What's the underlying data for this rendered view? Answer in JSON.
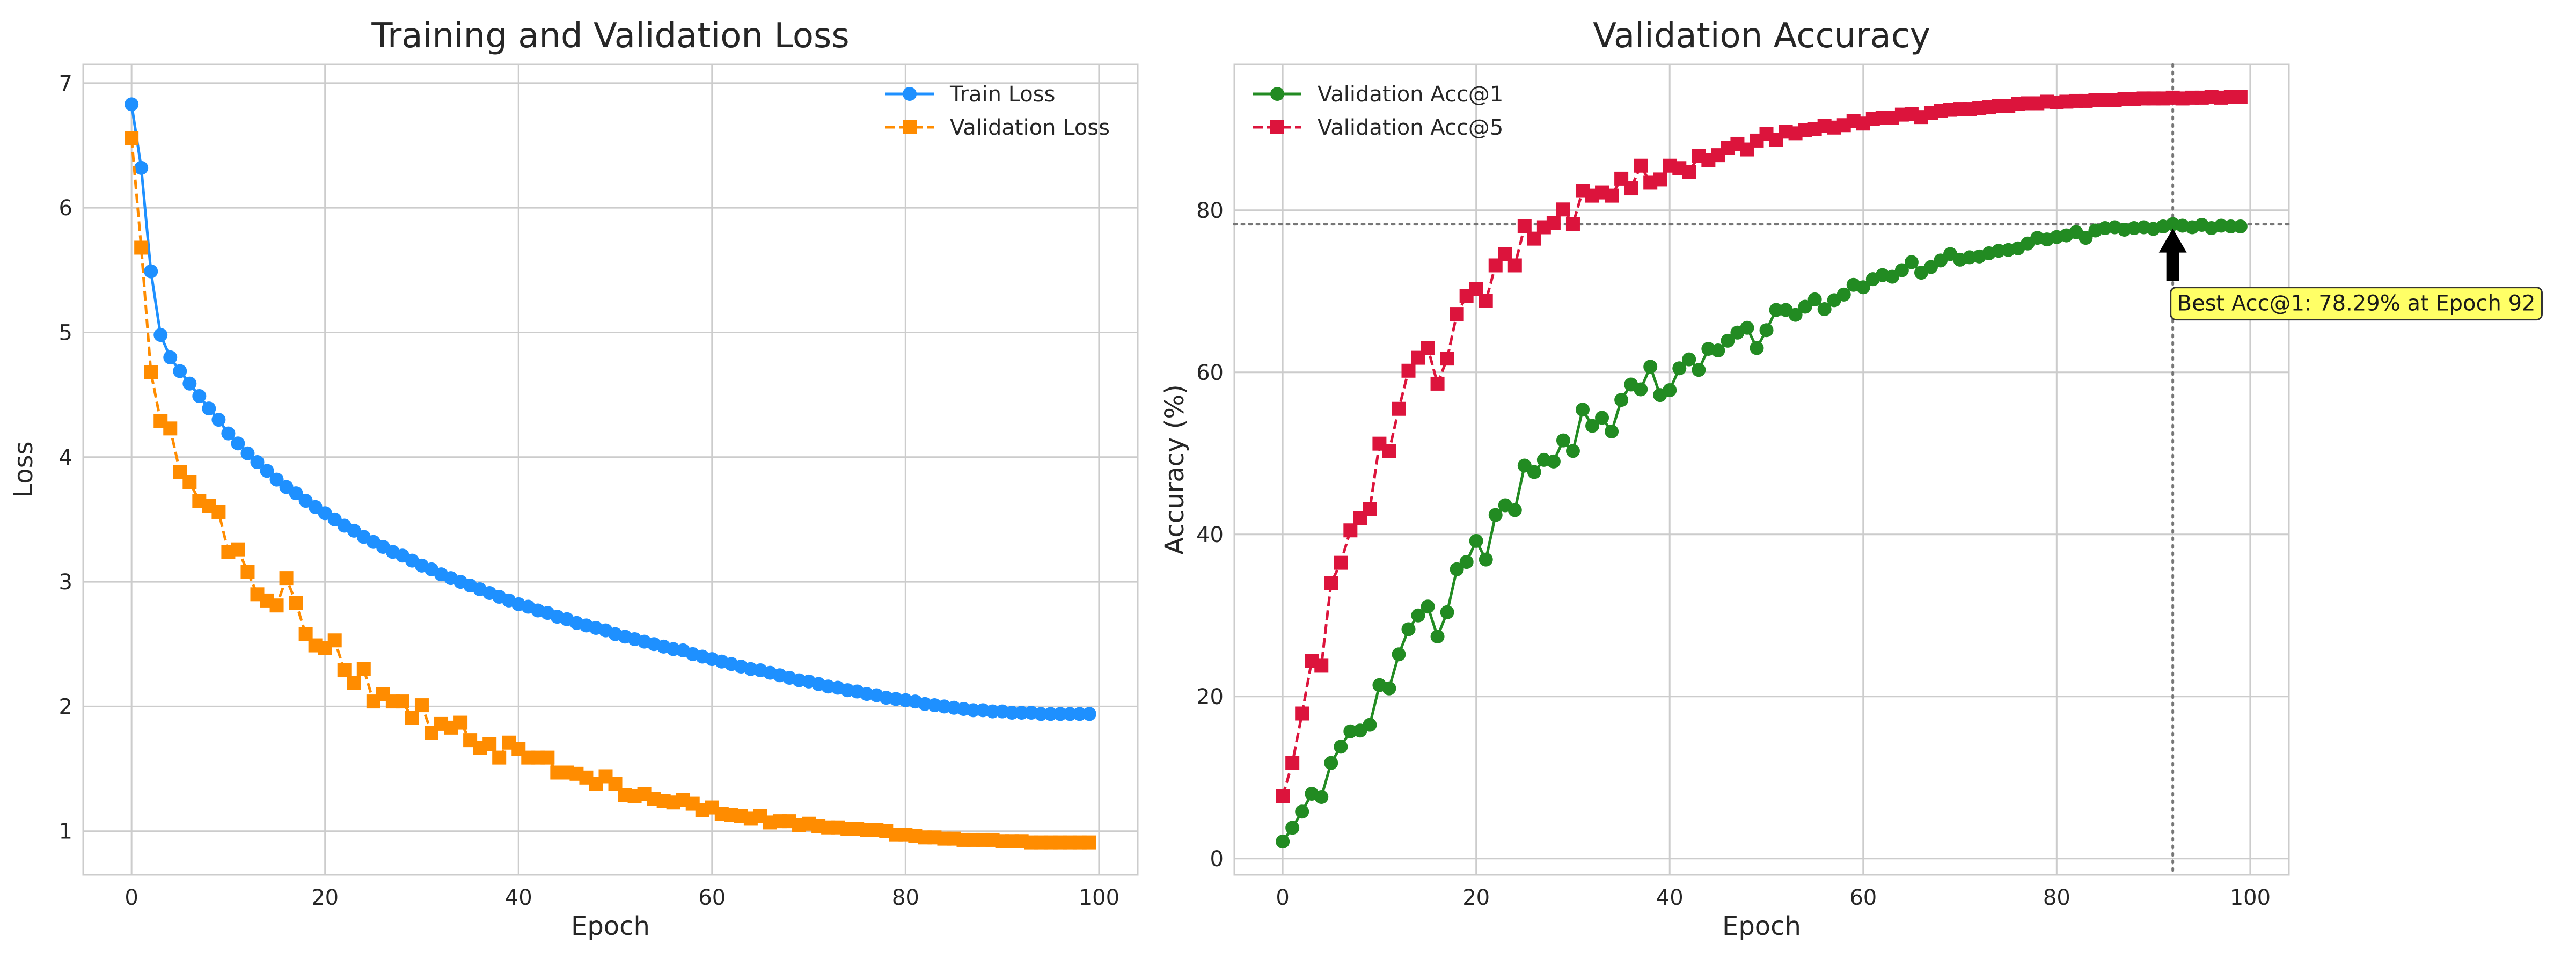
{
  "chart_data": [
    {
      "type": "line",
      "title": "Training and Validation Loss",
      "xlabel": "Epoch",
      "ylabel": "Loss",
      "xlim": [
        -5,
        104
      ],
      "ylim": [
        0.65,
        7.15
      ],
      "xticks": [
        0,
        20,
        40,
        60,
        80,
        100
      ],
      "yticks": [
        1,
        2,
        3,
        4,
        5,
        6,
        7
      ],
      "grid": true,
      "legend_position": "top-right",
      "x": [
        0,
        1,
        2,
        3,
        4,
        5,
        6,
        7,
        8,
        9,
        10,
        11,
        12,
        13,
        14,
        15,
        16,
        17,
        18,
        19,
        20,
        21,
        22,
        23,
        24,
        25,
        26,
        27,
        28,
        29,
        30,
        31,
        32,
        33,
        34,
        35,
        36,
        37,
        38,
        39,
        40,
        41,
        42,
        43,
        44,
        45,
        46,
        47,
        48,
        49,
        50,
        51,
        52,
        53,
        54,
        55,
        56,
        57,
        58,
        59,
        60,
        61,
        62,
        63,
        64,
        65,
        66,
        67,
        68,
        69,
        70,
        71,
        72,
        73,
        74,
        75,
        76,
        77,
        78,
        79,
        80,
        81,
        82,
        83,
        84,
        85,
        86,
        87,
        88,
        89,
        90,
        91,
        92,
        93,
        94,
        95,
        96,
        97,
        98,
        99
      ],
      "series": [
        {
          "name": "Train Loss",
          "color": "#1e90ff",
          "marker": "circle",
          "linestyle": "solid",
          "values": [
            6.83,
            6.32,
            5.49,
            4.98,
            4.8,
            4.69,
            4.59,
            4.49,
            4.39,
            4.3,
            4.19,
            4.11,
            4.03,
            3.96,
            3.89,
            3.82,
            3.76,
            3.71,
            3.65,
            3.6,
            3.55,
            3.5,
            3.45,
            3.41,
            3.36,
            3.32,
            3.28,
            3.24,
            3.21,
            3.17,
            3.13,
            3.1,
            3.06,
            3.03,
            3.0,
            2.97,
            2.94,
            2.91,
            2.88,
            2.85,
            2.82,
            2.8,
            2.77,
            2.75,
            2.72,
            2.7,
            2.67,
            2.65,
            2.63,
            2.61,
            2.58,
            2.56,
            2.54,
            2.52,
            2.5,
            2.48,
            2.46,
            2.45,
            2.42,
            2.4,
            2.38,
            2.36,
            2.34,
            2.32,
            2.3,
            2.29,
            2.27,
            2.25,
            2.23,
            2.21,
            2.2,
            2.18,
            2.16,
            2.15,
            2.13,
            2.12,
            2.1,
            2.09,
            2.07,
            2.06,
            2.05,
            2.04,
            2.02,
            2.01,
            2.0,
            1.99,
            1.98,
            1.97,
            1.97,
            1.96,
            1.96,
            1.95,
            1.95,
            1.95,
            1.94,
            1.94,
            1.94,
            1.94,
            1.94,
            1.94
          ]
        },
        {
          "name": "Validation Loss",
          "color": "#ff8c00",
          "marker": "square",
          "linestyle": "dashed",
          "values": [
            6.56,
            5.68,
            4.68,
            4.29,
            4.23,
            3.88,
            3.8,
            3.65,
            3.61,
            3.56,
            3.24,
            3.26,
            3.08,
            2.9,
            2.85,
            2.81,
            3.03,
            2.83,
            2.58,
            2.49,
            2.47,
            2.53,
            2.29,
            2.19,
            2.3,
            2.04,
            2.1,
            2.04,
            2.04,
            1.91,
            2.01,
            1.79,
            1.86,
            1.83,
            1.87,
            1.73,
            1.67,
            1.7,
            1.59,
            1.71,
            1.66,
            1.59,
            1.59,
            1.59,
            1.47,
            1.47,
            1.46,
            1.43,
            1.38,
            1.44,
            1.38,
            1.29,
            1.28,
            1.3,
            1.26,
            1.24,
            1.23,
            1.25,
            1.22,
            1.17,
            1.19,
            1.14,
            1.13,
            1.12,
            1.1,
            1.12,
            1.07,
            1.08,
            1.08,
            1.05,
            1.06,
            1.04,
            1.03,
            1.03,
            1.02,
            1.02,
            1.01,
            1.01,
            1.0,
            0.97,
            0.97,
            0.96,
            0.95,
            0.95,
            0.94,
            0.94,
            0.93,
            0.93,
            0.93,
            0.93,
            0.92,
            0.92,
            0.92,
            0.91,
            0.91,
            0.91,
            0.91,
            0.91,
            0.91,
            0.91
          ]
        }
      ]
    },
    {
      "type": "line",
      "title": "Validation Accuracy",
      "xlabel": "Epoch",
      "ylabel": "Accuracy (%)",
      "xlim": [
        -5,
        104
      ],
      "ylim": [
        -2,
        98
      ],
      "xticks": [
        0,
        20,
        40,
        60,
        80,
        100
      ],
      "yticks": [
        0,
        20,
        40,
        60,
        80
      ],
      "grid": true,
      "legend_position": "top-left",
      "x": [
        0,
        1,
        2,
        3,
        4,
        5,
        6,
        7,
        8,
        9,
        10,
        11,
        12,
        13,
        14,
        15,
        16,
        17,
        18,
        19,
        20,
        21,
        22,
        23,
        24,
        25,
        26,
        27,
        28,
        29,
        30,
        31,
        32,
        33,
        34,
        35,
        36,
        37,
        38,
        39,
        40,
        41,
        42,
        43,
        44,
        45,
        46,
        47,
        48,
        49,
        50,
        51,
        52,
        53,
        54,
        55,
        56,
        57,
        58,
        59,
        60,
        61,
        62,
        63,
        64,
        65,
        66,
        67,
        68,
        69,
        70,
        71,
        72,
        73,
        74,
        75,
        76,
        77,
        78,
        79,
        80,
        81,
        82,
        83,
        84,
        85,
        86,
        87,
        88,
        89,
        90,
        91,
        92,
        93,
        94,
        95,
        96,
        97,
        98,
        99
      ],
      "series": [
        {
          "name": "Validation Acc@1",
          "color": "#228b22",
          "marker": "circle",
          "linestyle": "solid",
          "values": [
            2.1,
            3.8,
            5.8,
            8.0,
            7.6,
            11.8,
            13.8,
            15.7,
            15.8,
            16.5,
            21.4,
            21.0,
            25.2,
            28.3,
            30.0,
            31.1,
            27.4,
            30.4,
            35.7,
            36.6,
            39.2,
            36.9,
            42.4,
            43.6,
            43.0,
            48.5,
            47.7,
            49.2,
            49.0,
            51.6,
            50.3,
            55.4,
            53.4,
            54.4,
            52.7,
            56.6,
            58.5,
            57.9,
            60.7,
            57.2,
            57.8,
            60.5,
            61.6,
            60.3,
            62.9,
            62.7,
            63.9,
            64.9,
            65.5,
            63.0,
            65.2,
            67.7,
            67.7,
            67.1,
            68.1,
            69.0,
            67.8,
            68.9,
            69.6,
            70.8,
            70.5,
            71.5,
            72.0,
            71.8,
            72.6,
            73.6,
            72.3,
            73.0,
            73.8,
            74.6,
            73.9,
            74.2,
            74.3,
            74.7,
            75.0,
            75.1,
            75.3,
            75.9,
            76.6,
            76.4,
            76.7,
            76.9,
            77.3,
            76.6,
            77.5,
            77.8,
            77.9,
            77.6,
            77.8,
            77.9,
            77.7,
            78.0,
            78.29,
            78.1,
            77.9,
            78.2,
            77.8,
            78.1,
            78.0,
            78.0
          ]
        },
        {
          "name": "Validation Acc@5",
          "color": "#dc143c",
          "marker": "square",
          "linestyle": "dashed",
          "values": [
            7.7,
            11.8,
            17.9,
            24.4,
            23.8,
            34.0,
            36.5,
            40.5,
            42.0,
            43.1,
            51.2,
            50.3,
            55.5,
            60.2,
            61.8,
            63.0,
            58.6,
            61.7,
            67.2,
            69.4,
            70.3,
            68.8,
            73.2,
            74.6,
            73.2,
            78.0,
            76.5,
            77.9,
            78.4,
            80.1,
            78.3,
            82.4,
            81.8,
            82.2,
            81.8,
            83.9,
            82.7,
            85.5,
            83.4,
            83.8,
            85.5,
            85.2,
            84.7,
            86.7,
            86.2,
            86.8,
            87.7,
            88.2,
            87.5,
            88.6,
            89.4,
            88.7,
            89.7,
            89.5,
            89.9,
            90.0,
            90.4,
            90.2,
            90.5,
            91.0,
            90.7,
            91.3,
            91.4,
            91.4,
            91.8,
            91.9,
            91.5,
            92.0,
            92.3,
            92.4,
            92.5,
            92.5,
            92.6,
            92.7,
            92.9,
            92.9,
            93.1,
            93.2,
            93.2,
            93.4,
            93.3,
            93.4,
            93.5,
            93.5,
            93.6,
            93.6,
            93.6,
            93.7,
            93.7,
            93.8,
            93.8,
            93.8,
            93.9,
            93.8,
            93.9,
            93.9,
            94.0,
            93.9,
            94.0,
            94.0
          ]
        }
      ],
      "reference_lines": {
        "best_epoch": 92,
        "best_acc": 78.29,
        "color": "#777777",
        "linestyle": "dotted"
      },
      "annotation": {
        "text": "Best Acc@1: 78.29% at Epoch 92",
        "point": [
          92,
          78.29
        ],
        "box_color": "#ffff66"
      }
    }
  ]
}
